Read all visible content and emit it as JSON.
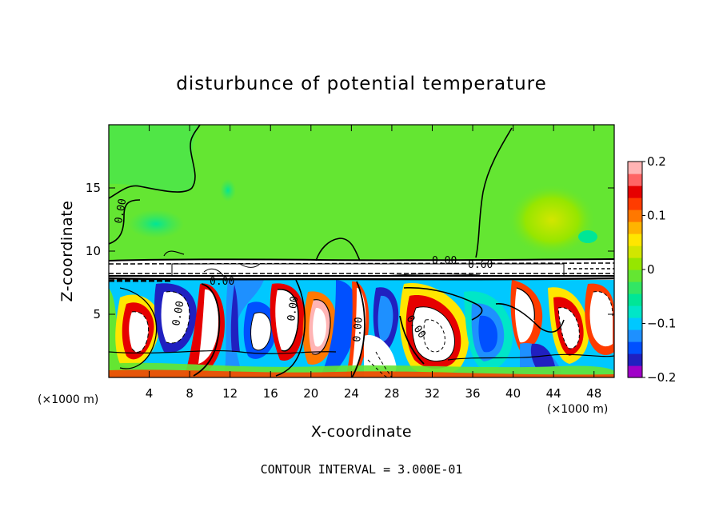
{
  "chart_data": {
    "type": "heatmap",
    "title": "disturbunce of potential temperature",
    "xlabel": "X-coordinate",
    "ylabel": "Z-coordinate",
    "x_unit": "(×1000 m)",
    "y_unit": "(×1000 m)",
    "xlim": [
      0,
      50
    ],
    "ylim": [
      0,
      20
    ],
    "x_ticks": [
      4,
      8,
      12,
      16,
      20,
      24,
      28,
      32,
      36,
      40,
      44,
      48
    ],
    "y_ticks": [
      5,
      10,
      15
    ],
    "colorbar": {
      "min": -0.2,
      "max": 0.2,
      "tick_values": [
        0.2,
        0.1,
        0,
        -0.1,
        -0.2
      ],
      "tick_labels": [
        "0.2",
        "0.1",
        "0",
        "−0.1",
        "−0.2"
      ],
      "colors": [
        "#a000c8",
        "#2020c0",
        "#0050ff",
        "#1e90ff",
        "#00c8ff",
        "#00e6c8",
        "#00e696",
        "#32e664",
        "#64e632",
        "#96e600",
        "#d2e600",
        "#ffe600",
        "#ffb400",
        "#ff7800",
        "#ff3c00",
        "#e60000",
        "#ff6464",
        "#ffb4b4"
      ]
    },
    "contour_interval_text": "CONTOUR INTERVAL = 3.000E-01",
    "contour_labels": [
      "0.00",
      "0.00",
      "0.00",
      "0.00",
      "0.00",
      "0.00",
      "0.00",
      "0.00",
      "0.60"
    ],
    "regions": {
      "upper_layer": {
        "z_range": [
          9.3,
          20
        ],
        "value": 0.0
      },
      "inversion_band": {
        "z_range": [
          7.6,
          9.3
        ],
        "value": 0.3
      },
      "turbulent_layer": {
        "z_range": [
          0,
          7.6
        ]
      }
    }
  }
}
